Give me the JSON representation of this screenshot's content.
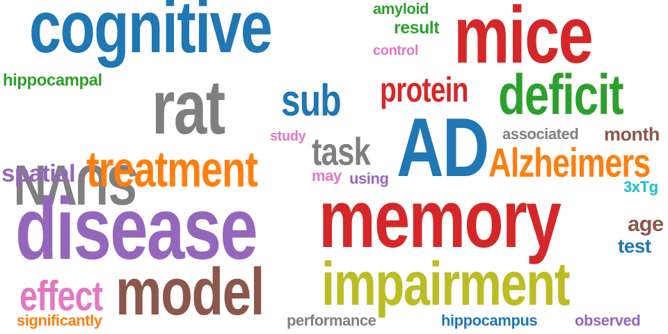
{
  "words": [
    {
      "id": "cognitive",
      "text": "cognitive",
      "color": "#1f77b4"
    },
    {
      "id": "mice",
      "text": "mice",
      "color": "#d62728"
    },
    {
      "id": "amyloid",
      "text": "amyloid",
      "color": "#2ca02c"
    },
    {
      "id": "result",
      "text": "result",
      "color": "#2ca02c"
    },
    {
      "id": "control",
      "text": "control",
      "color": "#e377c2"
    },
    {
      "id": "hippocampal",
      "text": "hippocampal",
      "color": "#2ca02c"
    },
    {
      "id": "rat",
      "text": "rat",
      "color": "#7f7f7f"
    },
    {
      "id": "suvn",
      "text": "SUVN",
      "color": "#7f7f7f"
    },
    {
      "id": "sub",
      "text": "sub",
      "color": "#1f77b4"
    },
    {
      "id": "protein",
      "text": "protein",
      "color": "#d62728"
    },
    {
      "id": "deficit",
      "text": "deficit",
      "color": "#2ca02c"
    },
    {
      "id": "study",
      "text": "study",
      "color": "#e377c2"
    },
    {
      "id": "associated",
      "text": "associated",
      "color": "#7f7f7f"
    },
    {
      "id": "month",
      "text": "month",
      "color": "#8c564b"
    },
    {
      "id": "task",
      "text": "task",
      "color": "#7f7f7f"
    },
    {
      "id": "ad",
      "text": "AD",
      "color": "#1f77b4"
    },
    {
      "id": "spatial",
      "text": "spatial",
      "color": "#9467bd"
    },
    {
      "id": "treatment",
      "text": "treatment",
      "color": "#ff7f0e"
    },
    {
      "id": "alzheimers",
      "text": "Alzheimers",
      "color": "#ff7f0e"
    },
    {
      "id": "may",
      "text": "may",
      "color": "#e377c2"
    },
    {
      "id": "using",
      "text": "using",
      "color": "#9467bd"
    },
    {
      "id": "3xtg",
      "text": "3xTg",
      "color": "#17becf"
    },
    {
      "id": "disease",
      "text": "disease",
      "color": "#9467bd"
    },
    {
      "id": "memory",
      "text": "memory",
      "color": "#d62728"
    },
    {
      "id": "age",
      "text": "age",
      "color": "#8c564b"
    },
    {
      "id": "test",
      "text": "test",
      "color": "#1f77b4"
    },
    {
      "id": "model",
      "text": "model",
      "color": "#8c564b"
    },
    {
      "id": "impairment",
      "text": "impairment",
      "color": "#bcbd22"
    },
    {
      "id": "effect",
      "text": "effect",
      "color": "#e377c2"
    },
    {
      "id": "significantly",
      "text": "significantly",
      "color": "#ff7f0e"
    },
    {
      "id": "performance",
      "text": "performance",
      "color": "#7f7f7f"
    },
    {
      "id": "hippocampus",
      "text": "hippocampus",
      "color": "#1f77b4"
    },
    {
      "id": "observed",
      "text": "observed",
      "color": "#9467bd"
    }
  ]
}
